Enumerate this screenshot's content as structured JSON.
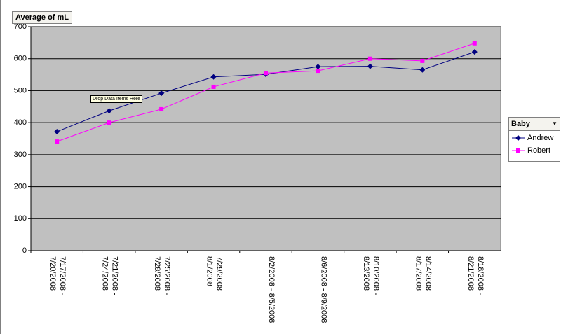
{
  "chart_data": {
    "type": "line",
    "field_button": "Average of mL",
    "drop_hint": "Drop Data Items Here",
    "legend_title": "Baby",
    "categories": [
      "7/17/2008 - 7/20/2008",
      "7/21/2008 - 7/24/2008",
      "7/25/2008 - 7/28/2008",
      "7/29/2008 - 8/1/2008",
      "8/2/2008 - 8/5/2008",
      "8/6/2008 - 8/9/2008",
      "8/10/2008 - 8/13/2008",
      "8/14/2008 - 8/17/2008",
      "8/18/2008 - 8/21/2008"
    ],
    "series": [
      {
        "name": "Andrew",
        "color": "#000080",
        "marker": "diamond",
        "values": [
          372,
          437,
          492,
          543,
          551,
          575,
          576,
          565,
          621
        ]
      },
      {
        "name": "Robert",
        "color": "#ff00ff",
        "marker": "square",
        "values": [
          341,
          400,
          442,
          512,
          555,
          562,
          600,
          593,
          648
        ]
      }
    ],
    "ylim": [
      0,
      700
    ],
    "yticks": [
      0,
      100,
      200,
      300,
      400,
      500,
      600,
      700
    ],
    "grid": true
  }
}
